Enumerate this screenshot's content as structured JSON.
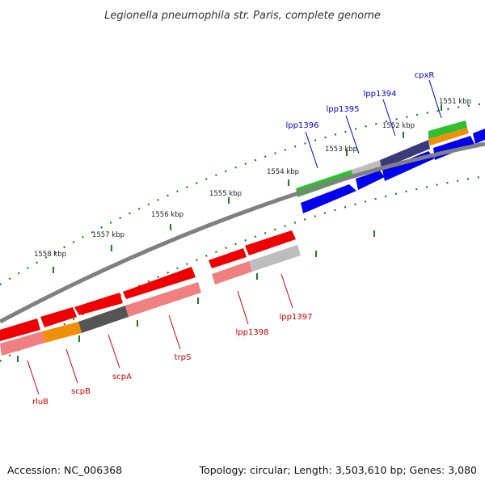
{
  "title": "Legionella pneumophila str. Paris, complete genome",
  "footer": {
    "accession": "Accession: NC_006368",
    "summary": "Topology: circular; Length: 3,503,610 bp; Genes: 3,080"
  },
  "colors": {
    "backbone": "#808080",
    "tick": "#1f7a1f",
    "forward_label": "#0000cc",
    "reverse_label": "#cc0000",
    "forward_cds": "#0000ee",
    "reverse_cds": "#ee0000",
    "forward_gene": "#2fbf2f",
    "reverse_gene": "#f08080",
    "orange": "#f0900a",
    "gray": "#bdbdbd",
    "dark_gray": "#555555",
    "purple": "#3b3a7a"
  },
  "ticks": [
    {
      "label": "1551 kbp"
    },
    {
      "label": "1552 kbp"
    },
    {
      "label": "1553 kbp"
    },
    {
      "label": "1554 kbp"
    },
    {
      "label": "1555 kbp"
    },
    {
      "label": "1556 kbp"
    },
    {
      "label": "1557 kbp"
    },
    {
      "label": "1558 kbp"
    }
  ],
  "forward_labels": [
    {
      "label": "cpxR"
    },
    {
      "label": "lpp1394"
    },
    {
      "label": "lpp1395"
    },
    {
      "label": "lpp1396"
    }
  ],
  "reverse_labels": [
    {
      "label": "lpp1397"
    },
    {
      "label": "lpp1398"
    },
    {
      "label": "trpS"
    },
    {
      "label": "scpA"
    },
    {
      "label": "scpB"
    },
    {
      "label": "rluB"
    }
  ]
}
